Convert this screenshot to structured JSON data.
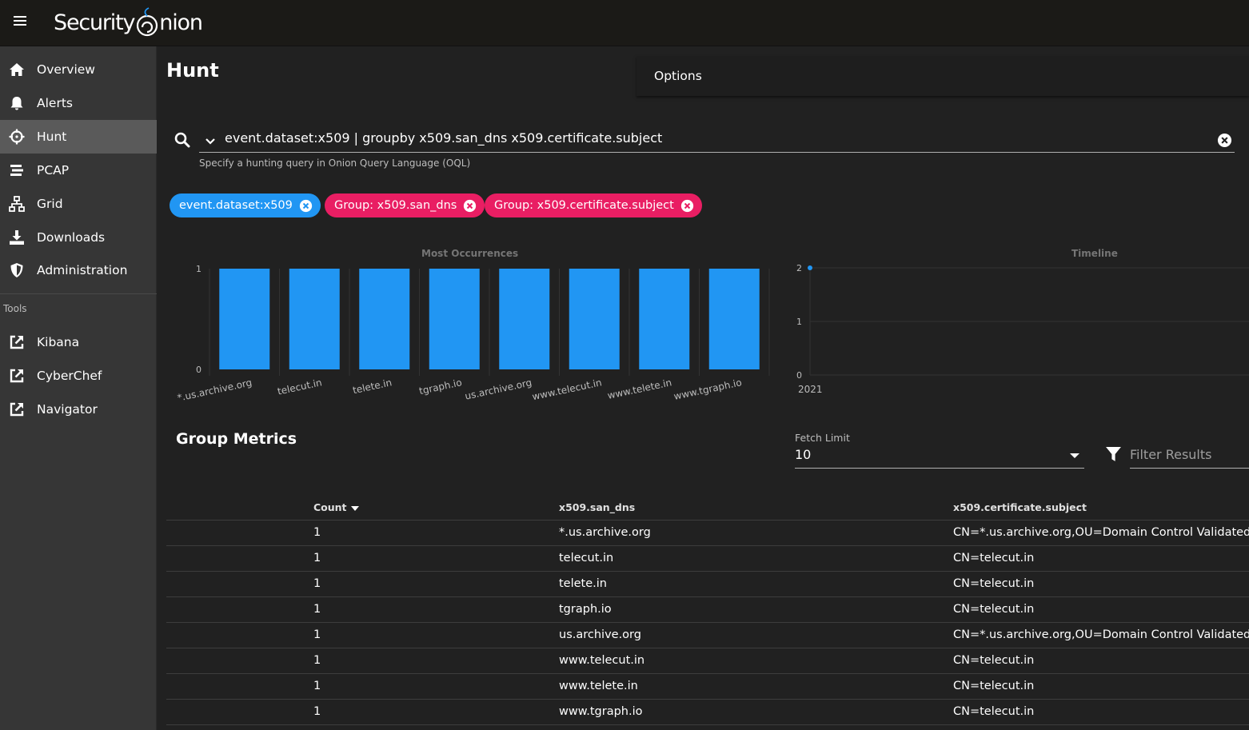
{
  "app": {
    "logo_text_1": "Security",
    "logo_text_2": "nion"
  },
  "nav": {
    "items": [
      {
        "label": "Overview",
        "icon": "home-icon"
      },
      {
        "label": "Alerts",
        "icon": "bell-icon"
      },
      {
        "label": "Hunt",
        "icon": "crosshairs-icon",
        "active": true
      },
      {
        "label": "PCAP",
        "icon": "stream-icon"
      },
      {
        "label": "Grid",
        "icon": "sitemap-icon"
      },
      {
        "label": "Downloads",
        "icon": "download-icon"
      },
      {
        "label": "Administration",
        "icon": "shield-icon"
      }
    ],
    "tools_heading": "Tools",
    "tools": [
      {
        "label": "Kibana",
        "icon": "external-link-icon"
      },
      {
        "label": "CyberChef",
        "icon": "external-link-icon"
      },
      {
        "label": "Navigator",
        "icon": "external-link-icon"
      }
    ]
  },
  "page": {
    "title": "Hunt",
    "options_label": "Options"
  },
  "query": {
    "value": "event.dataset:x509 | groupby x509.san_dns x509.certificate.subject",
    "hint": "Specify a hunting query in Onion Query Language (OQL)"
  },
  "chips": [
    {
      "label": "event.dataset:x509",
      "color": "#2196f3"
    },
    {
      "label": "Group: x509.san_dns",
      "color": "#e91e63"
    },
    {
      "label": "Group: x509.certificate.subject",
      "color": "#e91e63"
    }
  ],
  "chart_data": [
    {
      "type": "bar",
      "title": "Most Occurrences",
      "categories": [
        "*.us.archive.org",
        "telecut.in",
        "telete.in",
        "tgraph.io",
        "us.archive.org",
        "www.telecut.in",
        "www.telete.in",
        "www.tgraph.io"
      ],
      "values": [
        1,
        1,
        1,
        1,
        1,
        1,
        1,
        1
      ],
      "ylim": [
        0,
        1
      ],
      "yticks": [
        "0",
        "1"
      ],
      "color": "#2196f3"
    },
    {
      "type": "line",
      "title": "Timeline",
      "x": [
        "2021"
      ],
      "y": [
        2
      ],
      "ylim": [
        0,
        2
      ],
      "yticks": [
        "0",
        "1",
        "2"
      ],
      "xtick": "2021",
      "color": "#2196f3"
    }
  ],
  "metrics": {
    "title": "Group Metrics",
    "fetch_limit_label": "Fetch Limit",
    "fetch_limit_value": "10",
    "filter_placeholder": "Filter Results",
    "columns": [
      "Count",
      "x509.san_dns",
      "x509.certificate.subject"
    ],
    "rows": [
      [
        "1",
        "*.us.archive.org",
        "CN=*.us.archive.org,OU=Domain Control Validated"
      ],
      [
        "1",
        "telecut.in",
        "CN=telecut.in"
      ],
      [
        "1",
        "telete.in",
        "CN=telecut.in"
      ],
      [
        "1",
        "tgraph.io",
        "CN=telecut.in"
      ],
      [
        "1",
        "us.archive.org",
        "CN=*.us.archive.org,OU=Domain Control Validated"
      ],
      [
        "1",
        "www.telecut.in",
        "CN=telecut.in"
      ],
      [
        "1",
        "www.telete.in",
        "CN=telecut.in"
      ],
      [
        "1",
        "www.tgraph.io",
        "CN=telecut.in"
      ]
    ]
  }
}
